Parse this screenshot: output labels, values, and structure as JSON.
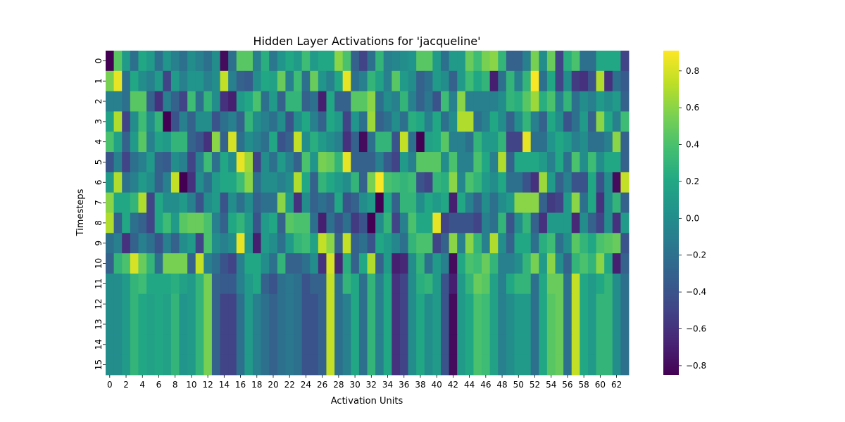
{
  "chart_data": {
    "type": "heatmap",
    "title": "Hidden Layer Activations for 'jacqueline'",
    "xlabel": "Activation Units",
    "ylabel": "Timesteps",
    "x_tick_labels": [
      "0",
      "2",
      "4",
      "6",
      "8",
      "10",
      "12",
      "14",
      "16",
      "18",
      "20",
      "22",
      "24",
      "26",
      "28",
      "30",
      "32",
      "34",
      "36",
      "38",
      "40",
      "42",
      "44",
      "46",
      "48",
      "50",
      "52",
      "54",
      "56",
      "58",
      "60",
      "62"
    ],
    "y_tick_labels": [
      "0",
      "1",
      "2",
      "3",
      "4",
      "5",
      "6",
      "7",
      "8",
      "9",
      "10",
      "11",
      "12",
      "13",
      "14",
      "15"
    ],
    "colormap": "viridis",
    "colorbar": {
      "vmin": -0.85,
      "vmax": 0.91,
      "tick_labels": [
        "−0.8",
        "−0.6",
        "−0.4",
        "−0.2",
        "0.0",
        "0.2",
        "0.4",
        "0.6",
        "0.8"
      ],
      "tick_values": [
        -0.8,
        -0.6,
        -0.4,
        -0.2,
        0.0,
        0.2,
        0.4,
        0.6,
        0.8
      ]
    },
    "columns": 64,
    "rows": 16,
    "values": [
      [
        -0.85,
        0.45,
        0.1,
        -0.2,
        0.2,
        0.1,
        -0.2,
        0.05,
        -0.1,
        -0.2,
        0.0,
        -0.1,
        -0.2,
        0.0,
        -0.8,
        -0.2,
        0.45,
        0.45,
        -0.1,
        0.25,
        -0.15,
        0.05,
        0.2,
        0.1,
        0.35,
        0.1,
        0.2,
        0.2,
        0.6,
        0.4,
        -0.3,
        -0.5,
        -0.2,
        0.3,
        -0.1,
        -0.05,
        0.0,
        0.05,
        0.45,
        0.45,
        0.1,
        -0.2,
        0.1,
        0.1,
        0.5,
        0.35,
        0.55,
        0.6,
        0.3,
        -0.3,
        -0.3,
        -0.1,
        0.55,
        0.0,
        0.5,
        -0.5,
        0.25,
        0.4,
        -0.2,
        -0.2,
        0.2,
        0.2,
        0.2,
        -0.5
      ],
      [
        0.55,
        0.85,
        -0.2,
        0.2,
        0.0,
        -0.1,
        0.1,
        -0.5,
        0.1,
        -0.1,
        0.05,
        0.05,
        -0.1,
        0.0,
        0.75,
        -0.1,
        -0.3,
        -0.35,
        0.0,
        0.2,
        0.15,
        0.5,
        -0.1,
        0.35,
        -0.2,
        0.5,
        0.05,
        -0.1,
        0.2,
        0.85,
        -0.2,
        -0.1,
        0.3,
        0.15,
        -0.1,
        0.45,
        0.1,
        0.0,
        -0.3,
        -0.2,
        0.1,
        0.0,
        -0.3,
        0.1,
        0.35,
        0.2,
        0.3,
        -0.7,
        -0.2,
        0.3,
        -0.1,
        0.3,
        0.9,
        -0.2,
        0.2,
        -0.5,
        0.0,
        -0.55,
        -0.6,
        -0.4,
        0.7,
        -0.6,
        -0.2,
        -0.35
      ],
      [
        -0.1,
        -0.1,
        -0.2,
        0.45,
        0.45,
        -0.3,
        -0.6,
        -0.1,
        -0.3,
        -0.5,
        0.35,
        -0.2,
        0.3,
        0.0,
        -0.6,
        -0.7,
        0.1,
        0.2,
        0.4,
        -0.2,
        0.1,
        -0.3,
        0.3,
        0.3,
        -0.3,
        -0.2,
        -0.7,
        0.2,
        -0.3,
        -0.3,
        0.45,
        0.45,
        0.6,
        -0.2,
        0.0,
        -0.1,
        0.3,
        -0.1,
        -0.3,
        -0.15,
        -0.4,
        0.35,
        -0.1,
        0.6,
        -0.1,
        -0.1,
        -0.1,
        -0.1,
        0.0,
        0.3,
        0.25,
        0.45,
        0.65,
        0.25,
        0.4,
        -0.1,
        0.3,
        -0.2,
        0.0,
        -0.1,
        0.1,
        0.0,
        0.1,
        -0.3
      ],
      [
        0.15,
        0.7,
        -0.5,
        0.0,
        0.35,
        0.0,
        0.3,
        -0.85,
        -0.4,
        -0.1,
        -0.3,
        0.0,
        0.0,
        -0.4,
        -0.2,
        -0.1,
        -0.3,
        0.3,
        0.0,
        -0.1,
        -0.2,
        0.0,
        -0.4,
        0.0,
        0.2,
        -0.1,
        -0.3,
        0.2,
        0.1,
        -0.5,
        0.05,
        -0.2,
        0.65,
        -0.3,
        -0.2,
        0.0,
        -0.2,
        0.25,
        0.2,
        -0.1,
        0.2,
        -0.2,
        0.0,
        0.7,
        0.7,
        -0.2,
        -0.1,
        0.2,
        0.0,
        -0.3,
        0.0,
        0.3,
        -0.1,
        -0.3,
        0.2,
        0.0,
        -0.4,
        -0.2,
        0.1,
        -0.3,
        0.6,
        0.2,
        -0.1,
        0.35
      ],
      [
        0.4,
        0.15,
        -0.3,
        0.1,
        0.45,
        -0.1,
        0.15,
        0.1,
        0.3,
        0.3,
        -0.3,
        -0.4,
        -0.6,
        0.6,
        -0.3,
        0.8,
        -0.2,
        0.0,
        -0.1,
        -0.2,
        0.2,
        -0.4,
        -0.3,
        0.75,
        0.0,
        0.25,
        0.1,
        0.0,
        -0.1,
        -0.6,
        -0.3,
        -0.8,
        -0.2,
        0.3,
        0.3,
        -0.4,
        0.75,
        -0.2,
        -0.85,
        0.15,
        0.2,
        0.45,
        -0.1,
        -0.1,
        -0.2,
        0.3,
        0.1,
        0.1,
        0.3,
        -0.5,
        -0.5,
        0.85,
        -0.2,
        -0.2,
        0.05,
        0.2,
        0.1,
        -0.1,
        0.0,
        -0.2,
        -0.2,
        -0.1,
        0.6,
        -0.3
      ],
      [
        -0.4,
        -0.1,
        -0.5,
        -0.2,
        -0.1,
        0.1,
        -0.3,
        -0.35,
        0.0,
        -0.1,
        -0.5,
        -0.1,
        0.35,
        -0.2,
        0.2,
        0.0,
        0.85,
        0.65,
        -0.5,
        0.0,
        -0.2,
        0.1,
        -0.1,
        -0.3,
        0.4,
        0.05,
        0.55,
        0.5,
        0.3,
        0.85,
        -0.3,
        -0.3,
        -0.3,
        -0.1,
        -0.35,
        -0.5,
        0.1,
        -0.1,
        0.45,
        0.45,
        0.45,
        0.0,
        0.4,
        -0.1,
        -0.1,
        0.4,
        0.2,
        -0.1,
        0.7,
        -0.3,
        0.2,
        0.2,
        0.2,
        0.1,
        -0.1,
        0.2,
        -0.2,
        0.4,
        0.0,
        0.35,
        0.0,
        0.2,
        0.2,
        -0.3
      ],
      [
        0.1,
        0.7,
        -0.2,
        -0.1,
        0.1,
        0.0,
        -0.3,
        -0.1,
        0.75,
        -0.85,
        -0.6,
        0.0,
        -0.2,
        0.1,
        0.2,
        0.2,
        0.35,
        0.6,
        -0.2,
        0.0,
        0.0,
        -0.1,
        0.0,
        0.7,
        0.2,
        -0.3,
        0.3,
        0.2,
        0.1,
        0.0,
        0.3,
        -0.3,
        0.55,
        0.9,
        0.4,
        0.35,
        0.3,
        0.35,
        -0.4,
        -0.5,
        0.3,
        0.25,
        0.6,
        -0.05,
        0.4,
        0.3,
        0.1,
        0.0,
        0.2,
        -0.2,
        -0.2,
        -0.4,
        -0.6,
        0.65,
        0.1,
        -0.3,
        -0.1,
        -0.4,
        -0.4,
        0.2,
        -0.4,
        0.0,
        -0.8,
        0.75
      ],
      [
        0.6,
        0.2,
        0.2,
        0.3,
        0.7,
        -0.5,
        0.2,
        0.0,
        0.0,
        0.1,
        -0.1,
        -0.4,
        0.0,
        0.1,
        -0.4,
        0.0,
        -0.2,
        0.0,
        -0.3,
        -0.2,
        -0.2,
        0.6,
        0.1,
        -0.6,
        0.0,
        -0.3,
        -0.2,
        -0.3,
        0.2,
        -0.4,
        -0.3,
        0.0,
        0.1,
        -0.85,
        0.2,
        -0.3,
        0.3,
        0.3,
        0.0,
        0.2,
        0.1,
        0.2,
        -0.7,
        0.2,
        -0.1,
        -0.3,
        0.0,
        -0.2,
        0.0,
        0.1,
        0.6,
        0.6,
        0.6,
        -0.3,
        -0.55,
        -0.5,
        0.1,
        0.6,
        -0.2,
        0.2,
        -0.6,
        0.0,
        0.3,
        -0.3
      ],
      [
        0.7,
        -0.3,
        0.2,
        -0.2,
        -0.3,
        -0.5,
        0.2,
        0.35,
        0.1,
        0.45,
        0.5,
        0.5,
        0.4,
        -0.1,
        -0.3,
        0.2,
        0.3,
        0.1,
        -0.4,
        0.1,
        0.2,
        -0.3,
        0.45,
        0.4,
        0.4,
        -0.2,
        -0.7,
        -0.2,
        -0.4,
        -0.2,
        -0.55,
        -0.4,
        -0.85,
        0.0,
        0.3,
        -0.5,
        -0.1,
        0.4,
        0.2,
        0.2,
        0.85,
        -0.5,
        -0.4,
        -0.4,
        -0.4,
        -0.5,
        -0.1,
        -0.2,
        0.3,
        -0.4,
        0.0,
        0.3,
        -0.3,
        -0.6,
        0.1,
        0.1,
        0.1,
        -0.65,
        0.0,
        -0.3,
        -0.5,
        0.0,
        -0.6,
        0.1
      ],
      [
        -0.2,
        -0.1,
        -0.6,
        -0.3,
        -0.1,
        -0.2,
        -0.4,
        -0.1,
        -0.3,
        0.0,
        0.1,
        -0.5,
        0.4,
        0.0,
        -0.1,
        0.0,
        0.85,
        0.05,
        -0.7,
        0.1,
        0.0,
        -0.2,
        0.1,
        0.3,
        0.35,
        0.15,
        0.75,
        0.6,
        -0.3,
        0.75,
        -0.3,
        -0.2,
        -0.4,
        0.2,
        0.1,
        -0.05,
        -0.2,
        0.3,
        0.4,
        0.4,
        -0.5,
        -0.3,
        0.6,
        -0.1,
        0.6,
        0.3,
        -0.1,
        0.7,
        0.0,
        -0.3,
        0.2,
        0.2,
        -0.2,
        0.25,
        0.35,
        -0.2,
        0.0,
        0.45,
        0.3,
        0.2,
        0.4,
        0.45,
        0.5,
        -0.4
      ],
      [
        -0.3,
        0.3,
        0.4,
        0.8,
        0.5,
        0.3,
        -0.2,
        0.55,
        0.55,
        0.55,
        -0.3,
        0.75,
        -0.1,
        -0.2,
        -0.4,
        -0.5,
        -0.1,
        0.2,
        0.2,
        0.0,
        -0.2,
        0.3,
        -0.3,
        -0.3,
        -0.2,
        0.0,
        -0.6,
        0.8,
        -0.65,
        0.25,
        -0.3,
        0.2,
        0.7,
        -0.3,
        0.1,
        -0.7,
        -0.65,
        0.0,
        0.3,
        -0.2,
        0.1,
        -0.1,
        -0.8,
        0.2,
        0.4,
        0.35,
        0.5,
        0.3,
        -0.1,
        -0.1,
        0.0,
        0.3,
        0.55,
        0.1,
        0.6,
        0.0,
        -0.3,
        0.3,
        0.4,
        0.3,
        0.6,
        0.2,
        -0.7,
        -0.3
      ],
      [
        0.0,
        0.0,
        0.1,
        0.3,
        0.35,
        0.2,
        0.2,
        0.2,
        0.25,
        0.15,
        0.1,
        0.3,
        0.55,
        -0.3,
        -0.35,
        -0.35,
        -0.1,
        0.1,
        0.2,
        -0.3,
        -0.4,
        -0.2,
        -0.15,
        -0.2,
        -0.4,
        -0.3,
        -0.3,
        0.75,
        -0.2,
        0.3,
        0.2,
        -0.2,
        0.3,
        -0.1,
        0.2,
        -0.6,
        -0.5,
        0.0,
        0.25,
        0.3,
        0.1,
        -0.4,
        -0.7,
        0.1,
        0.3,
        0.5,
        0.45,
        0.15,
        -0.1,
        0.2,
        0.3,
        0.3,
        -0.2,
        0.2,
        0.5,
        0.5,
        -0.2,
        0.75,
        0.2,
        0.1,
        0.2,
        0.3,
        0.0,
        -0.2
      ],
      [
        0.0,
        0.0,
        0.1,
        0.3,
        0.2,
        0.15,
        0.2,
        0.15,
        0.3,
        0.05,
        0.1,
        0.3,
        0.55,
        -0.3,
        -0.5,
        -0.5,
        -0.2,
        0.1,
        -0.1,
        -0.2,
        -0.3,
        -0.2,
        -0.15,
        -0.2,
        -0.4,
        -0.4,
        -0.3,
        0.75,
        -0.2,
        -0.1,
        0.2,
        -0.2,
        0.3,
        -0.1,
        0.2,
        -0.6,
        -0.5,
        0.0,
        0.2,
        0.0,
        0.1,
        -0.4,
        -0.8,
        0.1,
        0.2,
        0.4,
        0.35,
        0.15,
        -0.1,
        0.0,
        0.1,
        0.1,
        -0.2,
        0.2,
        0.45,
        0.5,
        -0.2,
        0.75,
        0.2,
        0.1,
        0.3,
        0.3,
        0.0,
        -0.2
      ],
      [
        0.0,
        0.0,
        0.1,
        0.3,
        0.2,
        0.15,
        0.2,
        0.15,
        0.3,
        0.05,
        0.1,
        0.3,
        0.55,
        -0.3,
        -0.5,
        -0.5,
        -0.2,
        0.1,
        -0.1,
        -0.2,
        -0.3,
        -0.2,
        -0.15,
        -0.2,
        -0.4,
        -0.4,
        -0.3,
        0.75,
        -0.2,
        -0.1,
        0.2,
        -0.2,
        0.3,
        -0.1,
        0.2,
        -0.6,
        -0.5,
        0.0,
        0.2,
        0.0,
        0.1,
        -0.4,
        -0.8,
        0.1,
        0.2,
        0.4,
        0.35,
        0.15,
        -0.1,
        0.0,
        0.1,
        0.1,
        -0.2,
        0.2,
        0.45,
        0.5,
        -0.2,
        0.75,
        0.2,
        0.1,
        0.3,
        0.3,
        0.0,
        -0.2
      ],
      [
        0.0,
        0.0,
        0.1,
        0.3,
        0.2,
        0.15,
        0.2,
        0.15,
        0.3,
        0.05,
        0.1,
        0.3,
        0.55,
        -0.3,
        -0.5,
        -0.5,
        -0.2,
        0.1,
        -0.1,
        -0.2,
        -0.3,
        -0.2,
        -0.15,
        -0.2,
        -0.4,
        -0.4,
        -0.3,
        0.75,
        -0.2,
        -0.1,
        0.2,
        -0.2,
        0.3,
        -0.1,
        0.2,
        -0.6,
        -0.5,
        0.0,
        0.2,
        0.0,
        0.1,
        -0.4,
        -0.8,
        0.1,
        0.2,
        0.4,
        0.35,
        0.15,
        -0.1,
        0.0,
        0.1,
        0.1,
        -0.2,
        0.2,
        0.45,
        0.5,
        -0.2,
        0.75,
        0.2,
        0.1,
        0.3,
        0.3,
        0.0,
        -0.2
      ],
      [
        0.0,
        0.0,
        0.1,
        0.3,
        0.2,
        0.15,
        0.2,
        0.15,
        0.3,
        0.05,
        0.1,
        0.3,
        0.55,
        -0.3,
        -0.5,
        -0.5,
        -0.2,
        0.1,
        -0.1,
        -0.2,
        -0.3,
        -0.2,
        -0.15,
        -0.2,
        -0.4,
        -0.4,
        -0.3,
        0.75,
        -0.2,
        -0.1,
        0.2,
        -0.2,
        0.3,
        -0.1,
        0.2,
        -0.6,
        -0.5,
        0.0,
        0.2,
        0.0,
        0.1,
        -0.4,
        -0.8,
        0.1,
        0.2,
        0.4,
        0.35,
        0.15,
        -0.1,
        0.0,
        0.1,
        0.1,
        -0.2,
        0.2,
        0.45,
        0.5,
        -0.2,
        0.75,
        0.2,
        0.1,
        0.3,
        0.3,
        0.0,
        -0.2
      ]
    ]
  }
}
